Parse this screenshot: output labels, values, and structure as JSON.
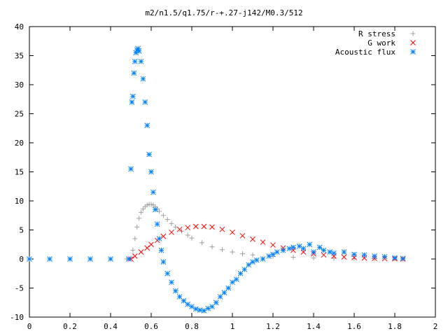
{
  "chart_data": {
    "type": "scatter",
    "title": "m2/n1.5/q1.75/r-+.27-j142/M0.3/512",
    "xlabel": "",
    "ylabel": "",
    "xlim": [
      0,
      2
    ],
    "ylim": [
      -10,
      40
    ],
    "x_ticks": [
      "0",
      "0.2",
      "0.4",
      "0.6",
      "0.8",
      "1",
      "1.2",
      "1.4",
      "1.6",
      "1.8",
      "2"
    ],
    "y_ticks": [
      "-10",
      "-5",
      "0",
      "5",
      "10",
      "15",
      "20",
      "25",
      "30",
      "35",
      "40"
    ],
    "grid": false,
    "legend_position": "top-right",
    "series": [
      {
        "name": "R stress",
        "marker": "plus",
        "color": "#a0a0a0",
        "x": [
          0.0,
          0.1,
          0.2,
          0.3,
          0.4,
          0.48,
          0.5,
          0.51,
          0.52,
          0.53,
          0.54,
          0.55,
          0.56,
          0.57,
          0.58,
          0.59,
          0.6,
          0.61,
          0.62,
          0.63,
          0.64,
          0.66,
          0.68,
          0.7,
          0.72,
          0.75,
          0.78,
          0.8,
          0.85,
          0.9,
          0.95,
          1.0,
          1.05,
          1.1,
          1.2,
          1.3,
          1.4,
          1.5,
          1.6,
          1.7,
          1.8,
          1.84
        ],
        "y": [
          0,
          0,
          0,
          0,
          0,
          0,
          0.2,
          1.5,
          3.5,
          5.5,
          7,
          8,
          8.6,
          9,
          9.3,
          9.4,
          9.4,
          9.3,
          9.0,
          8.6,
          8.2,
          7.5,
          6.8,
          6.1,
          5.5,
          4.8,
          4.1,
          3.6,
          2.8,
          2.1,
          1.6,
          1.2,
          0.9,
          0.7,
          0.45,
          0.3,
          0.2,
          0.12,
          0.08,
          0.05,
          0.02,
          0.0
        ]
      },
      {
        "name": "G work",
        "marker": "cross",
        "color": "#ff0000",
        "x": [
          0.5,
          0.52,
          0.55,
          0.58,
          0.6,
          0.63,
          0.66,
          0.7,
          0.74,
          0.78,
          0.82,
          0.86,
          0.9,
          0.95,
          1.0,
          1.05,
          1.1,
          1.15,
          1.2,
          1.25,
          1.3,
          1.35,
          1.4,
          1.45,
          1.5,
          1.55,
          1.6,
          1.65,
          1.7,
          1.75,
          1.8,
          1.84
        ],
        "y": [
          0,
          0.5,
          1.2,
          1.9,
          2.5,
          3.2,
          3.9,
          4.6,
          5.1,
          5.4,
          5.6,
          5.6,
          5.5,
          5.1,
          4.6,
          4.0,
          3.4,
          2.9,
          2.4,
          1.9,
          1.5,
          1.2,
          0.9,
          0.7,
          0.5,
          0.35,
          0.25,
          0.17,
          0.1,
          0.06,
          0.03,
          0.0
        ]
      },
      {
        "name": "Acoustic flux",
        "marker": "star",
        "color": "#0080ff",
        "x": [
          0.0,
          0.1,
          0.2,
          0.3,
          0.4,
          0.49,
          0.5,
          0.505,
          0.51,
          0.515,
          0.52,
          0.525,
          0.53,
          0.535,
          0.54,
          0.55,
          0.56,
          0.57,
          0.58,
          0.59,
          0.6,
          0.61,
          0.62,
          0.63,
          0.64,
          0.65,
          0.66,
          0.68,
          0.7,
          0.72,
          0.74,
          0.76,
          0.78,
          0.8,
          0.82,
          0.84,
          0.86,
          0.88,
          0.9,
          0.92,
          0.94,
          0.96,
          0.98,
          1.0,
          1.02,
          1.04,
          1.06,
          1.08,
          1.1,
          1.12,
          1.15,
          1.18,
          1.2,
          1.22,
          1.25,
          1.28,
          1.3,
          1.33,
          1.35,
          1.38,
          1.4,
          1.43,
          1.45,
          1.48,
          1.5,
          1.55,
          1.6,
          1.65,
          1.7,
          1.75,
          1.8,
          1.84
        ],
        "y": [
          0,
          0,
          0,
          0,
          0,
          0,
          15.5,
          27,
          28,
          32,
          34,
          35.5,
          36,
          36.2,
          35.8,
          34,
          31,
          27,
          23,
          18,
          15,
          11.5,
          8.5,
          6,
          3.5,
          1.5,
          -0.5,
          -2.5,
          -4,
          -5.5,
          -6.5,
          -7.2,
          -7.8,
          -8.2,
          -8.6,
          -8.8,
          -8.9,
          -8.5,
          -8.2,
          -7.5,
          -6.5,
          -5.8,
          -5,
          -4,
          -3.5,
          -2.5,
          -1.8,
          -1,
          -0.5,
          -0.2,
          0,
          0.5,
          0.8,
          1.2,
          1.5,
          1.8,
          2,
          2.2,
          1.8,
          2.5,
          1.2,
          2,
          1.5,
          1.2,
          1,
          1.2,
          0.8,
          0.7,
          0.5,
          0.4,
          0.2,
          0.1
        ]
      }
    ]
  }
}
